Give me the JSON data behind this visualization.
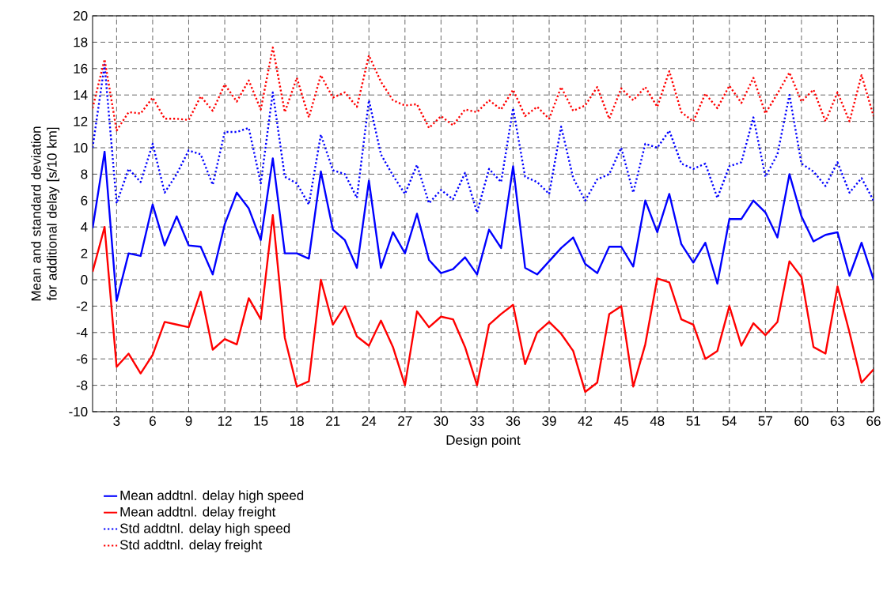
{
  "chart_data": {
    "type": "line",
    "xlabel": "Design point",
    "ylabel": "Mean and standard deviation for additional delay [s/10 km]",
    "x": [
      1,
      2,
      3,
      4,
      5,
      6,
      7,
      8,
      9,
      10,
      11,
      12,
      13,
      14,
      15,
      16,
      17,
      18,
      19,
      20,
      21,
      22,
      23,
      24,
      25,
      26,
      27,
      28,
      29,
      30,
      31,
      32,
      33,
      34,
      35,
      36,
      37,
      38,
      39,
      40,
      41,
      42,
      43,
      44,
      45,
      46,
      47,
      48,
      49,
      50,
      51,
      52,
      53,
      54,
      55,
      56,
      57,
      58,
      59,
      60,
      61,
      62,
      63,
      64,
      65,
      66
    ],
    "xlim": [
      1,
      66
    ],
    "xticks": [
      3,
      6,
      9,
      12,
      15,
      18,
      21,
      24,
      27,
      30,
      33,
      36,
      39,
      42,
      45,
      48,
      51,
      54,
      57,
      60,
      63,
      66
    ],
    "ylim": [
      -10,
      20
    ],
    "yticks": [
      -10,
      -8,
      -6,
      -4,
      -2,
      0,
      2,
      4,
      6,
      8,
      10,
      12,
      14,
      16,
      18,
      20
    ],
    "grid": true,
    "legend": "bottom",
    "series": [
      {
        "name": "Mean addtnl. delay high speed",
        "color": "#0000ff",
        "line_style": "solid",
        "values": [
          3.9,
          9.7,
          -1.6,
          2.0,
          1.8,
          5.7,
          2.6,
          4.8,
          2.6,
          2.5,
          0.4,
          4.2,
          6.6,
          5.4,
          3.0,
          9.2,
          2.0,
          2.0,
          1.6,
          8.2,
          3.8,
          3.0,
          0.9,
          7.5,
          0.9,
          3.6,
          2.0,
          5.0,
          1.5,
          0.5,
          0.8,
          1.7,
          0.4,
          3.8,
          2.4,
          8.6,
          0.9,
          0.4,
          1.4,
          2.4,
          3.2,
          1.2,
          0.5,
          2.5,
          2.5,
          1.0,
          6.0,
          3.6,
          6.5,
          2.7,
          1.3,
          2.8,
          -0.3,
          4.6,
          4.6,
          6.0,
          5.1,
          3.2,
          8.0,
          4.8,
          2.9,
          3.4,
          3.6,
          0.3,
          2.8,
          0.0
        ]
      },
      {
        "name": "Mean addtnl. delay freight",
        "color": "#ff0000",
        "line_style": "solid",
        "values": [
          0.6,
          4.0,
          -6.6,
          -5.6,
          -7.1,
          -5.7,
          -3.2,
          -3.4,
          -3.6,
          -0.9,
          -5.3,
          -4.5,
          -4.9,
          -1.4,
          -3.0,
          4.9,
          -4.4,
          -8.1,
          -7.7,
          0.0,
          -3.4,
          -2.0,
          -4.3,
          -5.0,
          -3.1,
          -5.1,
          -8.0,
          -2.4,
          -3.6,
          -2.8,
          -3.0,
          -5.1,
          -8.0,
          -3.4,
          -2.6,
          -1.9,
          -6.4,
          -4.0,
          -3.2,
          -4.1,
          -5.4,
          -8.5,
          -7.8,
          -2.6,
          -2.0,
          -8.1,
          -4.9,
          0.1,
          -0.2,
          -3.0,
          -3.4,
          -6.0,
          -5.4,
          -2.0,
          -5.0,
          -3.3,
          -4.2,
          -3.2,
          1.4,
          0.2,
          -5.1,
          -5.6,
          -0.5,
          -4.0,
          -7.8,
          -6.8
        ]
      },
      {
        "name": "Std addtnl. delay high speed",
        "color": "#0000ff",
        "line_style": "dotted",
        "values": [
          10.0,
          16.3,
          5.8,
          8.4,
          7.4,
          10.3,
          6.6,
          8.0,
          9.8,
          9.5,
          7.2,
          11.2,
          11.2,
          11.5,
          7.3,
          14.2,
          7.8,
          7.3,
          5.7,
          11.0,
          8.3,
          8.0,
          6.2,
          13.6,
          9.5,
          7.9,
          6.5,
          8.7,
          5.8,
          6.8,
          6.1,
          8.1,
          5.1,
          8.4,
          7.4,
          13.0,
          7.8,
          7.4,
          6.5,
          11.6,
          7.7,
          6.0,
          7.6,
          8.0,
          10.0,
          6.6,
          10.3,
          10.0,
          11.3,
          8.8,
          8.4,
          8.8,
          6.2,
          8.6,
          8.9,
          12.3,
          7.8,
          9.5,
          14.0,
          8.8,
          8.2,
          7.1,
          8.9,
          6.6,
          7.7,
          6.0
        ]
      },
      {
        "name": "Std addtnl. delay freight",
        "color": "#ff0000",
        "line_style": "dotted",
        "values": [
          13.0,
          16.7,
          11.3,
          12.7,
          12.6,
          13.8,
          12.2,
          12.2,
          12.1,
          13.9,
          12.8,
          14.8,
          13.5,
          15.1,
          12.9,
          17.6,
          12.7,
          15.3,
          12.3,
          15.5,
          13.8,
          14.2,
          13.1,
          17.0,
          15.0,
          13.6,
          13.2,
          13.3,
          11.5,
          12.4,
          11.7,
          12.9,
          12.7,
          13.6,
          12.9,
          14.4,
          12.4,
          13.1,
          12.2,
          14.6,
          12.8,
          13.2,
          14.6,
          12.2,
          14.5,
          13.6,
          14.6,
          13.1,
          15.8,
          12.7,
          12.0,
          14.1,
          13.0,
          14.7,
          13.4,
          15.3,
          12.6,
          14.1,
          15.7,
          13.5,
          14.4,
          12.0,
          14.2,
          12.0,
          15.5,
          12.4
        ]
      }
    ]
  }
}
